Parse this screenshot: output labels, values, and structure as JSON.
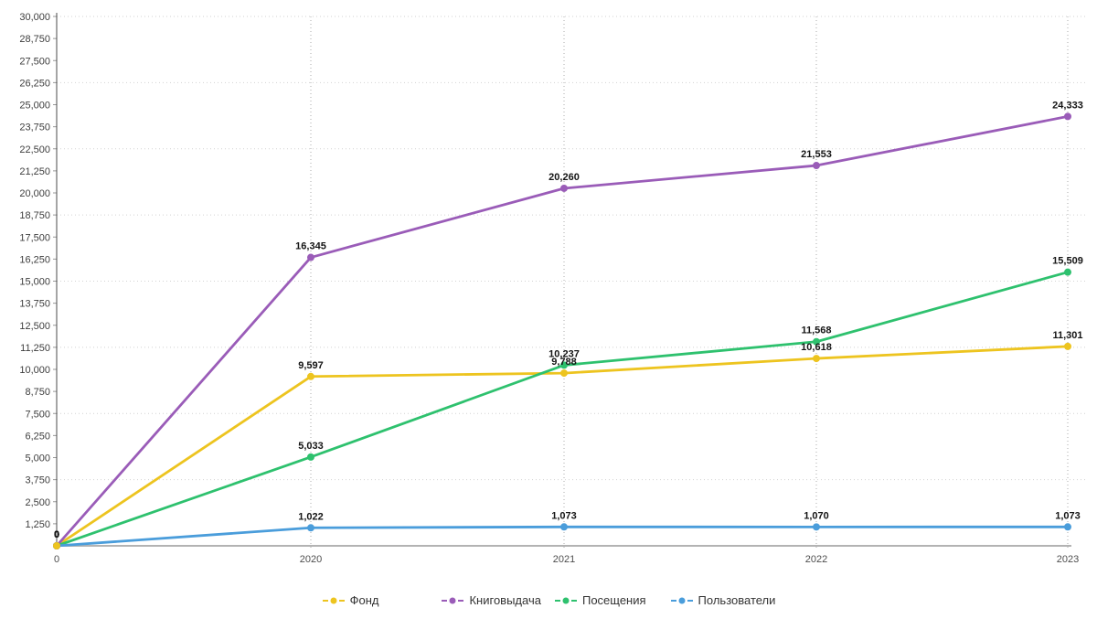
{
  "chart_data": {
    "type": "line",
    "title": "",
    "xlabel": "",
    "ylabel": "",
    "x_labels": [
      "0",
      "2020",
      "2021",
      "2022",
      "2023"
    ],
    "y_ticks": [
      "1,250",
      "2,500",
      "3,750",
      "5,000",
      "6,250",
      "7,500",
      "8,750",
      "10,000",
      "11,250",
      "12,500",
      "13,750",
      "15,000",
      "16,250",
      "17,500",
      "18,750",
      "20,000",
      "21,250",
      "22,500",
      "23,750",
      "25,000",
      "26,250",
      "27,500",
      "28,750",
      "30,000"
    ],
    "ylim": [
      0,
      30000
    ],
    "y_tick_step": 1250,
    "grid_step": 3750,
    "grid": true,
    "legend_position": "bottom",
    "series": [
      {
        "name": "Фонд",
        "color": "#edc41f",
        "values": [
          0,
          9597,
          9788,
          10618,
          11301
        ],
        "labels": [
          "0",
          "9,597",
          "9,788",
          "10,618",
          "11,301"
        ]
      },
      {
        "name": "Книговыдача",
        "color": "#9a5cb8",
        "values": [
          0,
          16345,
          20260,
          21553,
          24333
        ],
        "labels": [
          "0",
          "16,345",
          "20,260",
          "21,553",
          "24,333"
        ]
      },
      {
        "name": "Посещения",
        "color": "#2ec16e",
        "values": [
          0,
          5033,
          10237,
          11568,
          15509
        ],
        "labels": [
          "0",
          "5,033",
          "10,237",
          "11,568",
          "15,509"
        ]
      },
      {
        "name": "Пользователи",
        "color": "#4a9ddb",
        "values": [
          0,
          1022,
          1073,
          1070,
          1073
        ],
        "labels": [
          "0",
          "1,022",
          "1,073",
          "1,070",
          "1,073"
        ]
      }
    ]
  }
}
